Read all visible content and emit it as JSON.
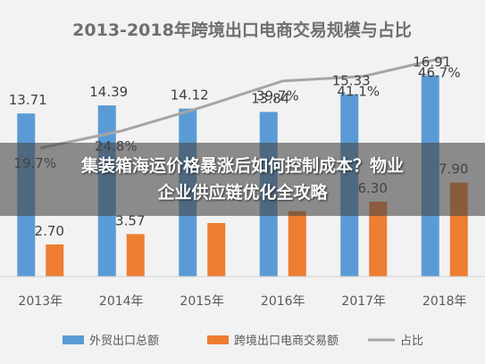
{
  "overlay": {
    "line1": "集装箱海运价格暴涨后如何控制成本？物业",
    "line2": "企业供应链优化全攻略"
  },
  "chart_data": {
    "type": "bar",
    "title": "2013-2018年跨境出口电商交易规模与占比",
    "categories": [
      "2013年",
      "2014年",
      "2015年",
      "2016年",
      "2017年",
      "2018年"
    ],
    "series": [
      {
        "name": "外贸出口总额",
        "type": "bar",
        "color": "#5b9bd5",
        "values": [
          13.71,
          14.39,
          14.12,
          13.84,
          15.33,
          16.91
        ]
      },
      {
        "name": "跨境出口电商交易额",
        "type": "bar",
        "color": "#ed7d31",
        "values": [
          2.7,
          3.57,
          4.5,
          5.5,
          6.3,
          7.9
        ]
      },
      {
        "name": "占比",
        "type": "line",
        "color": "#a5a5a5",
        "values": [
          19.7,
          24.8,
          31.9,
          39.7,
          41.1,
          46.7
        ],
        "unit": "%"
      }
    ],
    "value_labels": {
      "exports": [
        "13.71",
        "14.39",
        "14.12",
        "13.84",
        "15.33",
        "16.91"
      ],
      "ecommerce": [
        "2.70",
        "3.57",
        "",
        "",
        "6.30",
        "7.90"
      ],
      "share": [
        "19.7%",
        "24.8%",
        "",
        "39.7%",
        "41.1%",
        "46.7%"
      ]
    },
    "ylim": [
      0,
      18
    ],
    "share_lim": [
      0,
      50
    ],
    "grid": false,
    "legend": "bottom"
  }
}
